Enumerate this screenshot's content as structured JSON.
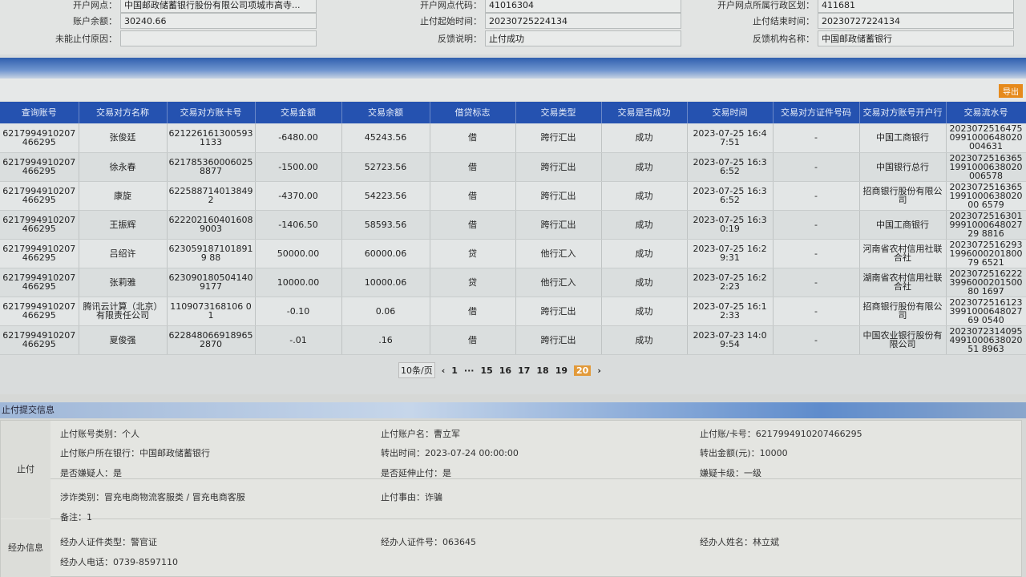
{
  "account_info": [
    {
      "label": "开户网点：",
      "value": "中国邮政储蓄银行股份有限公司项城市高寺..."
    },
    {
      "label": "开户网点代码：",
      "value": "41016304"
    },
    {
      "label": "开户网点所属行政区划：",
      "value": "411681"
    },
    {
      "label": "账户余额：",
      "value": "30240.66"
    },
    {
      "label": "止付起始时间：",
      "value": "20230725224134"
    },
    {
      "label": "止付结束时间：",
      "value": "20230727224134"
    },
    {
      "label": "未能止付原因：",
      "value": ""
    },
    {
      "label": "反馈说明：",
      "value": "止付成功"
    },
    {
      "label": "反馈机构名称：",
      "value": "中国邮政储蓄银行"
    }
  ],
  "toolbar": {
    "export_label": "导出"
  },
  "table": {
    "columns": [
      "查询账号",
      "交易对方名称",
      "交易对方账卡号",
      "交易金额",
      "交易余额",
      "借贷标志",
      "交易类型",
      "交易是否成功",
      "交易时间",
      "交易对方证件号码",
      "交易对方账号开户行",
      "交易流水号"
    ],
    "rows": [
      [
        "6217994910207466295",
        "张俊廷",
        "6212261613005931133",
        "-6480.00",
        "45243.56",
        "借",
        "跨行汇出",
        "成功",
        "2023-07-25 16:47:51",
        "-",
        "中国工商银行",
        "20230725164750991000648020004631"
      ],
      [
        "6217994910207466295",
        "徐永春",
        "6217853600060258877",
        "-1500.00",
        "52723.56",
        "借",
        "跨行汇出",
        "成功",
        "2023-07-25 16:36:52",
        "-",
        "中国银行总行",
        "20230725163651991000638020006578"
      ],
      [
        "6217994910207466295",
        "康旋",
        "622588714013849 2",
        "-4370.00",
        "54223.56",
        "借",
        "跨行汇出",
        "成功",
        "2023-07-25 16:36:52",
        "-",
        "招商银行股份有限公司",
        "2023072516365199100063802000 6579"
      ],
      [
        "6217994910207466295",
        "王振辉",
        "6222021604016089003",
        "-1406.50",
        "58593.56",
        "借",
        "跨行汇出",
        "成功",
        "2023-07-25 16:30:19",
        "-",
        "中国工商银行",
        "2023072516301999100064802729 8816"
      ],
      [
        "6217994910207466295",
        "吕绍许",
        "6230591871018919 88",
        "50000.00",
        "60000.06",
        "贷",
        "他行汇入",
        "成功",
        "2023-07-25 16:29:31",
        "-",
        "河南省农村信用社联合社",
        "2023072516293199600020180079 6521"
      ],
      [
        "6217994910207466295",
        "张莉雅",
        "6230901805041409177",
        "10000.00",
        "10000.06",
        "贷",
        "他行汇入",
        "成功",
        "2023-07-25 16:22:23",
        "-",
        "湖南省农村信用社联合社",
        "2023072516222399600020150080 1697"
      ],
      [
        "6217994910207466295",
        "腾讯云计算（北京）有限责任公司",
        "1109073168106 01",
        "-0.10",
        "0.06",
        "借",
        "跨行汇出",
        "成功",
        "2023-07-25 16:12:33",
        "-",
        "招商银行股份有限公司",
        "2023072516123399100064802769 0540"
      ],
      [
        "6217994910207466295",
        "夏俊强",
        "6228480669189652870",
        "-.01",
        ".16",
        "借",
        "跨行汇出",
        "成功",
        "2023-07-23 14:09:54",
        "-",
        "中国农业银行股份有限公司",
        "2023072314095499100063802051 8963"
      ]
    ]
  },
  "pagination": {
    "page_size": "10条/页",
    "pages": [
      "1",
      "···",
      "15",
      "16",
      "17",
      "18",
      "19",
      "20"
    ],
    "current": "20"
  },
  "submit_section": {
    "title": "止付提交信息",
    "group1_label": "止付",
    "group2_label": "经办信息",
    "fields": [
      "止付账号类别：个人",
      "止付账户名：曹立军",
      "止付账/卡号：6217994910207466295",
      "止付账户所在银行：中国邮政储蓄银行",
      "转出时间：2023-07-24 00:00:00",
      "转出金额(元)：10000",
      "是否嫌疑人：是",
      "是否延伸止付：是",
      "嫌疑卡级：一级",
      "涉诈类别：冒充电商物流客服类 / 冒充电商客服",
      "止付事由：诈骗",
      "备注：1",
      "经办人证件类型：警官证",
      "经办人证件号：063645",
      "经办人姓名：林立斌",
      "经办人电话：0739-8597110"
    ]
  }
}
